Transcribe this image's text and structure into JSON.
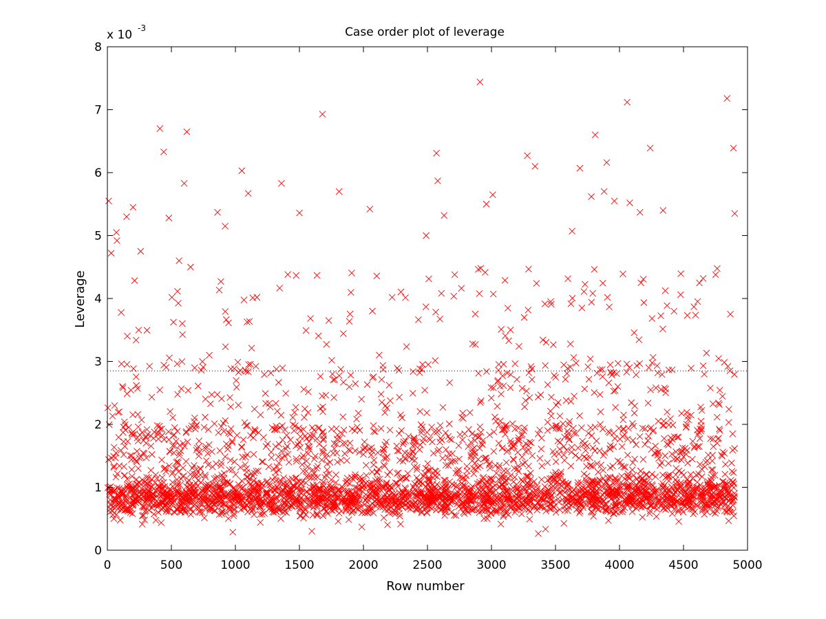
{
  "chart_data": {
    "type": "scatter",
    "title": "Case order plot of leverage",
    "xlabel": "Row number",
    "ylabel": "Leverage",
    "y_multiplier": {
      "base": "x 10",
      "exponent": "-3"
    },
    "xlim": [
      0,
      5000
    ],
    "ylim": [
      0,
      8
    ],
    "x_ticks": [
      "0",
      "500",
      "1000",
      "1500",
      "2000",
      "2500",
      "3000",
      "3500",
      "4000",
      "4500",
      "5000"
    ],
    "y_ticks": [
      "0",
      "1",
      "2",
      "3",
      "4",
      "5",
      "6",
      "7",
      "8"
    ],
    "y_units_note": "y values in units of 10^-3",
    "grid": false,
    "marker": "x",
    "marker_color": "#ff0000",
    "reference_line": {
      "y": 2.85,
      "style": "dotted",
      "color": "#000000"
    },
    "n_points_approx": 4900,
    "highlighted_points": [
      {
        "x": 10,
        "y": 5.55
      },
      {
        "x": 30,
        "y": 4.72
      },
      {
        "x": 70,
        "y": 5.05
      },
      {
        "x": 75,
        "y": 4.92
      },
      {
        "x": 150,
        "y": 5.3
      },
      {
        "x": 200,
        "y": 5.45
      },
      {
        "x": 260,
        "y": 4.75
      },
      {
        "x": 410,
        "y": 6.7
      },
      {
        "x": 440,
        "y": 6.33
      },
      {
        "x": 480,
        "y": 5.28
      },
      {
        "x": 560,
        "y": 4.6
      },
      {
        "x": 600,
        "y": 5.83
      },
      {
        "x": 620,
        "y": 6.65
      },
      {
        "x": 650,
        "y": 4.5
      },
      {
        "x": 860,
        "y": 5.37
      },
      {
        "x": 920,
        "y": 5.15
      },
      {
        "x": 1050,
        "y": 6.03
      },
      {
        "x": 1100,
        "y": 5.67
      },
      {
        "x": 1360,
        "y": 5.83
      },
      {
        "x": 1500,
        "y": 5.36
      },
      {
        "x": 1680,
        "y": 6.93
      },
      {
        "x": 1810,
        "y": 5.7
      },
      {
        "x": 2050,
        "y": 5.42
      },
      {
        "x": 2490,
        "y": 5.0
      },
      {
        "x": 2570,
        "y": 6.31
      },
      {
        "x": 2580,
        "y": 5.87
      },
      {
        "x": 2630,
        "y": 5.32
      },
      {
        "x": 2910,
        "y": 7.44
      },
      {
        "x": 2960,
        "y": 5.5
      },
      {
        "x": 3010,
        "y": 5.65
      },
      {
        "x": 3280,
        "y": 6.27
      },
      {
        "x": 3340,
        "y": 6.1
      },
      {
        "x": 3630,
        "y": 5.07
      },
      {
        "x": 3690,
        "y": 6.07
      },
      {
        "x": 3810,
        "y": 6.6
      },
      {
        "x": 3780,
        "y": 5.62
      },
      {
        "x": 3880,
        "y": 5.7
      },
      {
        "x": 3900,
        "y": 6.16
      },
      {
        "x": 3960,
        "y": 5.55
      },
      {
        "x": 4060,
        "y": 7.12
      },
      {
        "x": 4080,
        "y": 5.52
      },
      {
        "x": 4240,
        "y": 6.39
      },
      {
        "x": 4160,
        "y": 5.37
      },
      {
        "x": 4340,
        "y": 5.4
      },
      {
        "x": 4840,
        "y": 7.18
      },
      {
        "x": 4890,
        "y": 6.39
      },
      {
        "x": 4900,
        "y": 5.35
      }
    ],
    "bulk_distribution": {
      "x_range": [
        0,
        4900
      ],
      "dense_band": [
        0.6,
        1.2
      ],
      "typical_max": 4.5
    }
  }
}
